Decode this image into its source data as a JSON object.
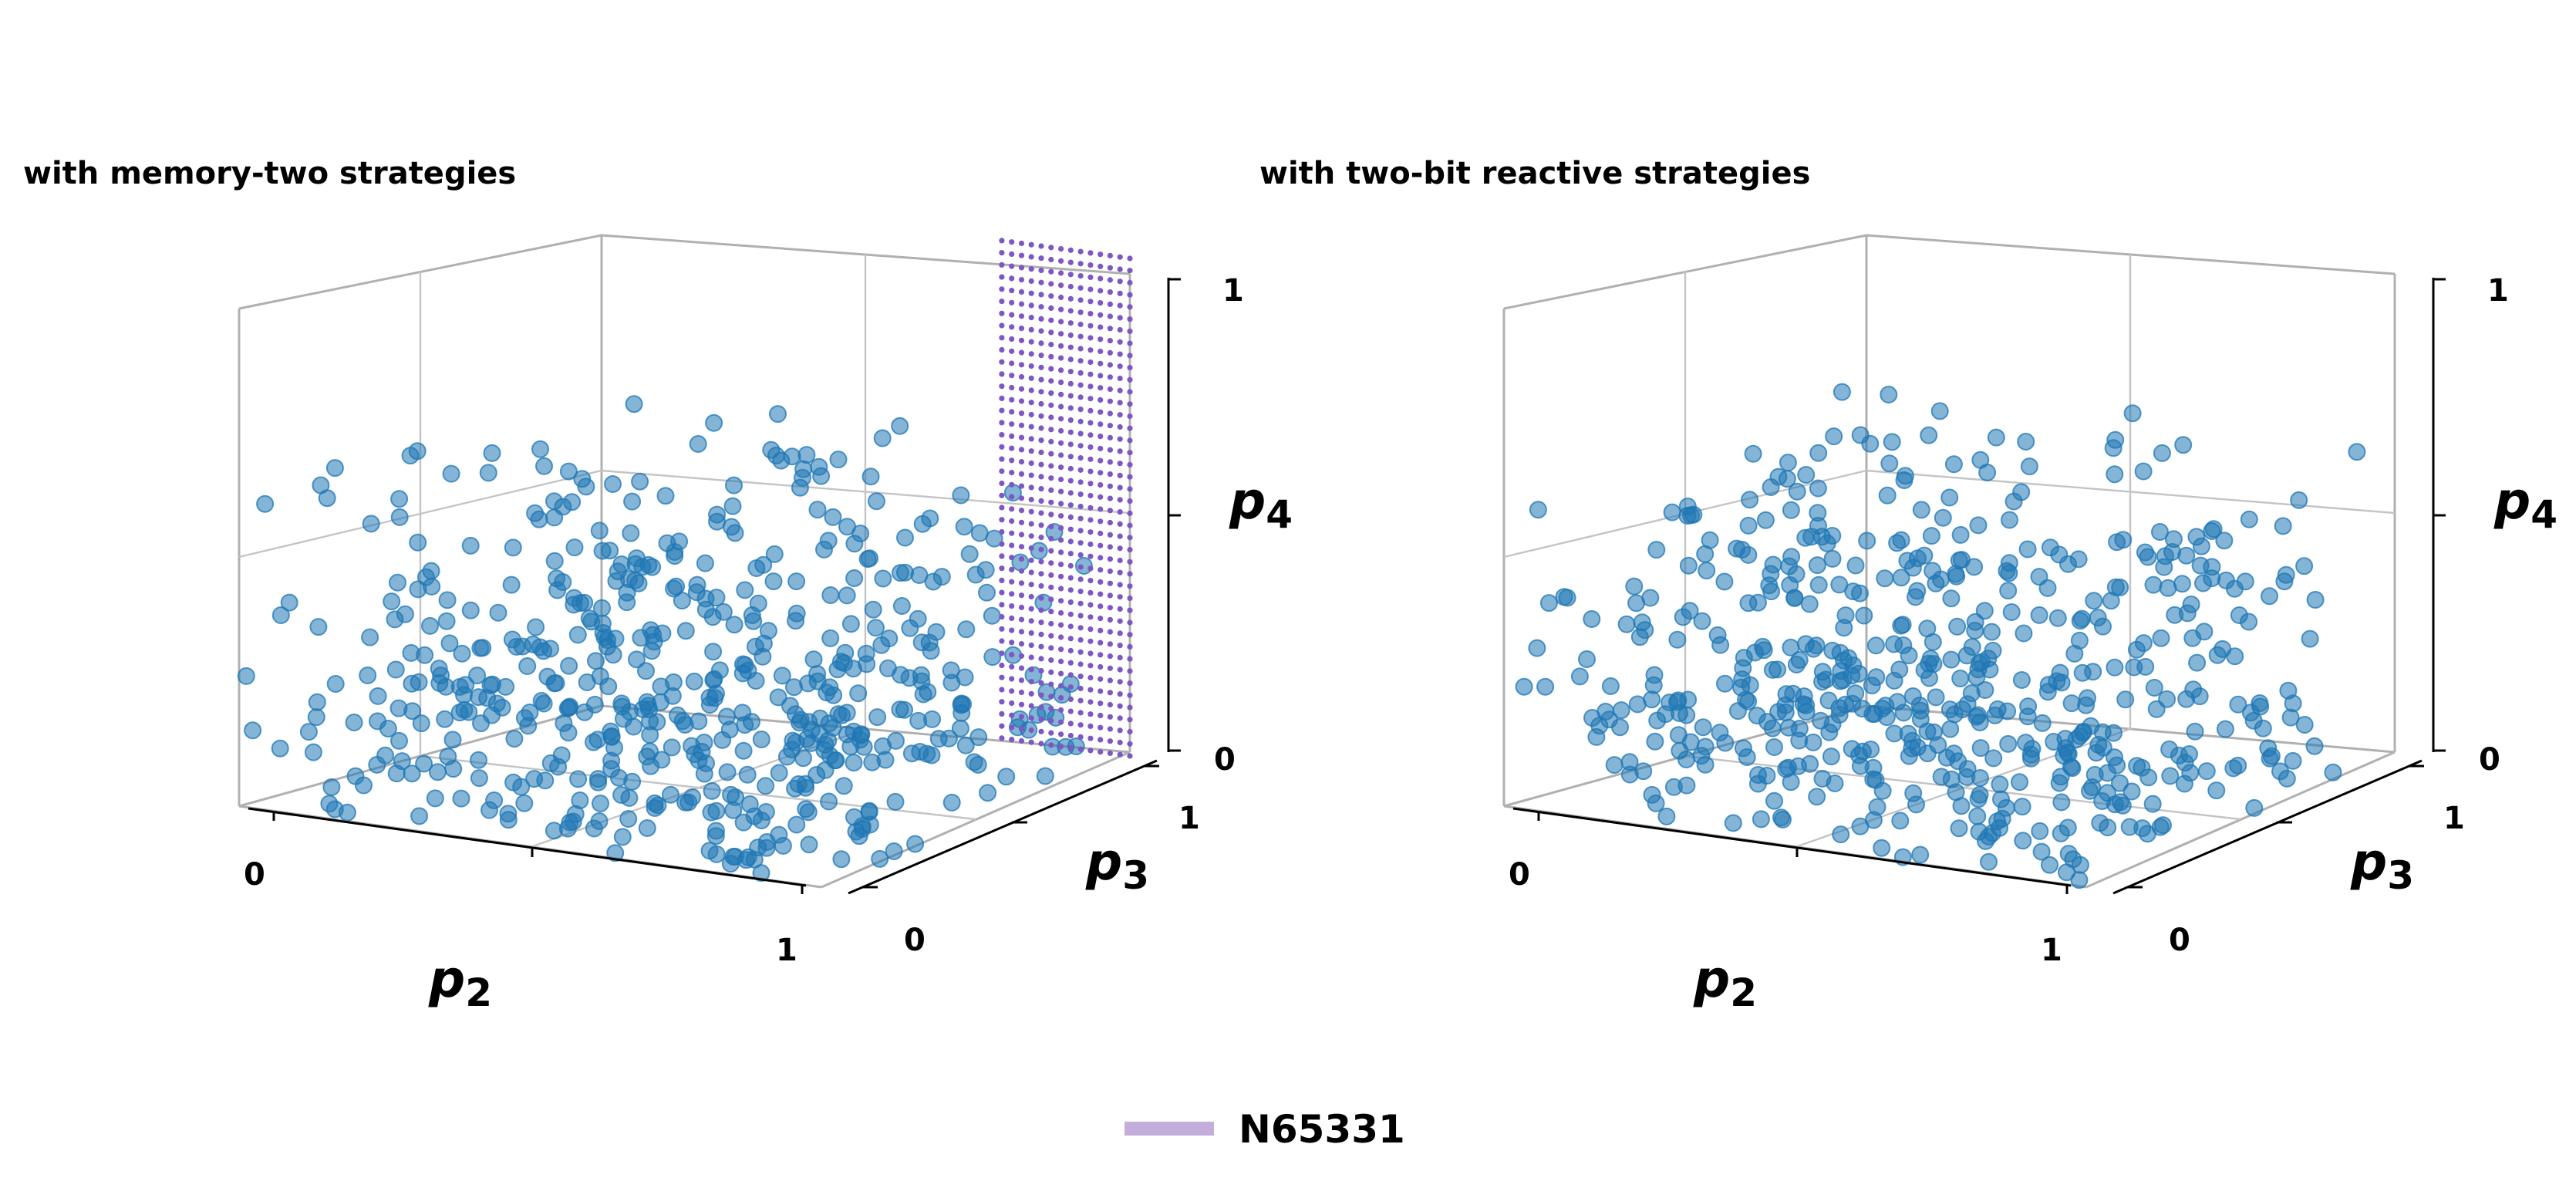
{
  "chart_data": [
    {
      "type": "scatter",
      "projection": "3d",
      "title": "with memory-two strategies",
      "axes": {
        "x": {
          "name": "p",
          "sub": "2",
          "range": [
            0,
            1
          ],
          "ticks": [
            "0",
            "1"
          ]
        },
        "y": {
          "name": "p",
          "sub": "3",
          "range": [
            0,
            1
          ],
          "ticks": [
            "0",
            "1"
          ]
        },
        "z": {
          "name": "p",
          "sub": "4",
          "range": [
            0,
            1
          ],
          "ticks": [
            "0",
            "1"
          ]
        }
      },
      "grid": true,
      "scatter": {
        "count": 560,
        "distribution": "random, p4 concentrated in lower half",
        "color": "#1f77b4",
        "alpha": 0.55
      },
      "surface": {
        "series": "N65331",
        "p3": 1,
        "p2_range": [
          0.78,
          1.0
        ],
        "p4_range": [
          0,
          1
        ],
        "color": "#7e57c2"
      }
    },
    {
      "type": "scatter",
      "projection": "3d",
      "title": "with two-bit reactive strategies",
      "axes": {
        "x": {
          "name": "p",
          "sub": "2",
          "range": [
            0,
            1
          ],
          "ticks": [
            "0",
            "1"
          ]
        },
        "y": {
          "name": "p",
          "sub": "3",
          "range": [
            0,
            1
          ],
          "ticks": [
            "0",
            "1"
          ]
        },
        "z": {
          "name": "p",
          "sub": "4",
          "range": [
            0,
            1
          ],
          "ticks": [
            "0",
            "1"
          ]
        }
      },
      "grid": true,
      "scatter": {
        "count": 560,
        "distribution": "random, p4 concentrated in lower half",
        "color": "#1f77b4",
        "alpha": 0.55
      }
    }
  ],
  "legend": {
    "position": "bottom-center",
    "entries": [
      {
        "label": "N65331",
        "color": "#c3aedb"
      }
    ]
  }
}
